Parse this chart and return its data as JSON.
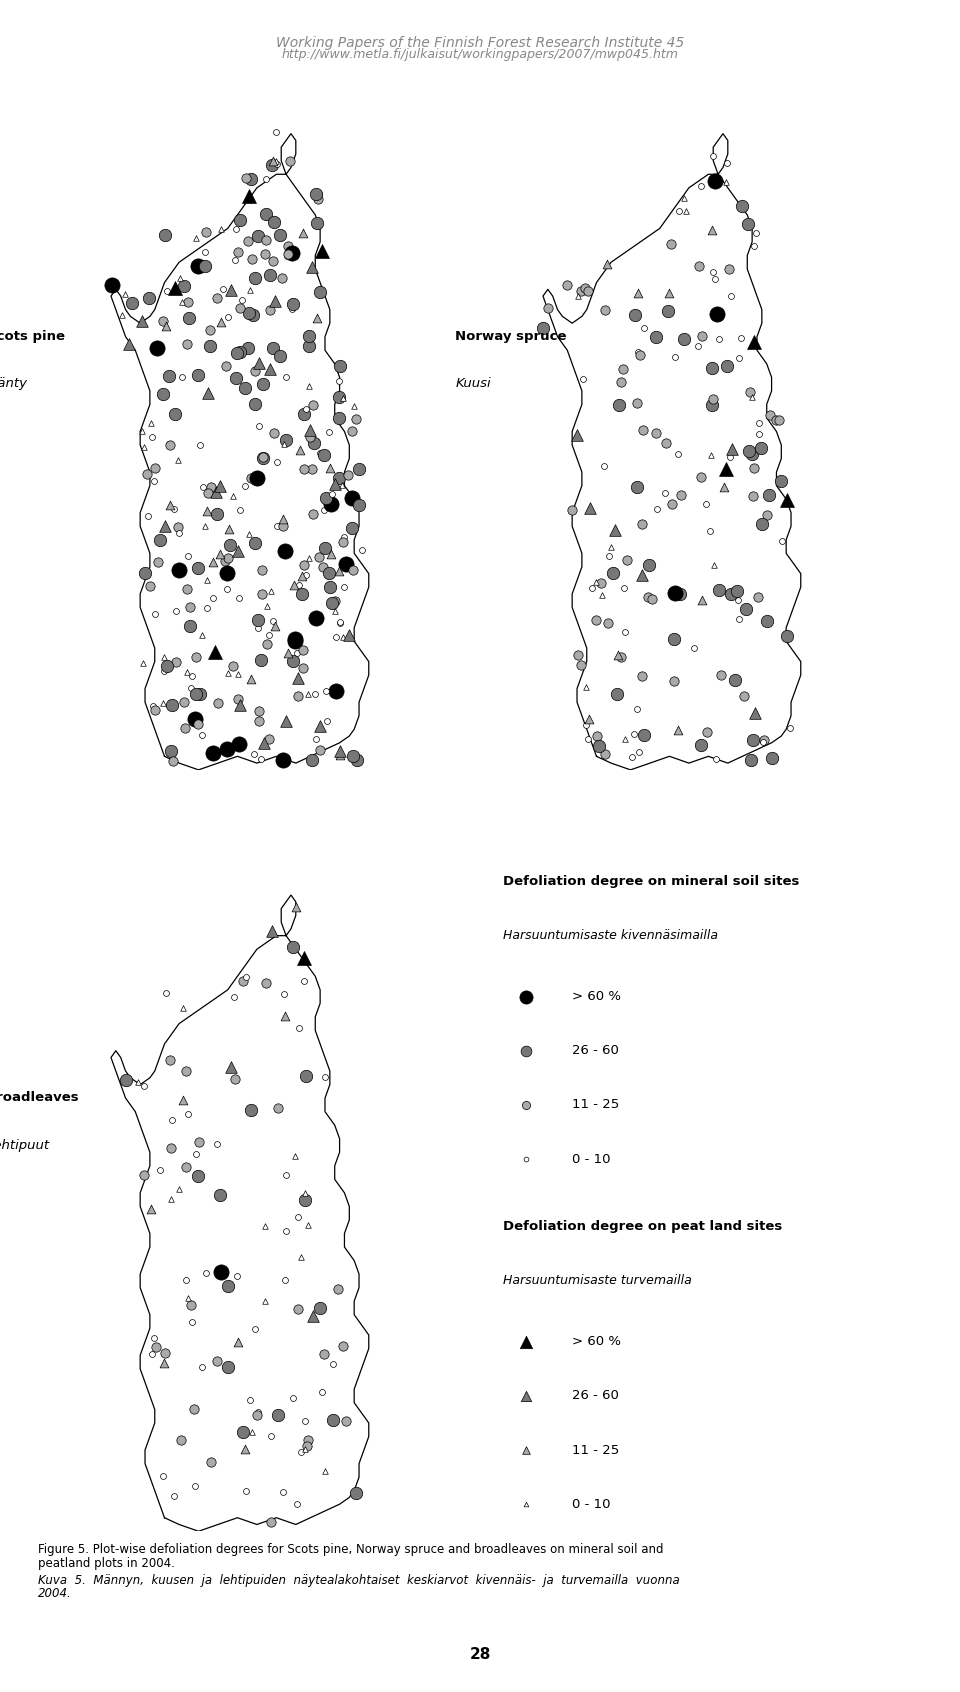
{
  "header_title": "Working Papers of the Finnish Forest Research Institute 45",
  "header_url": "http://www.metla.fi/julkaisut/workingpapers/2007/mwp045.htm",
  "header_color": "#888888",
  "header_line_color": "#4EADB5",
  "figure_caption_line1": "Figure 5. Plot-wise defoliation degrees for Scots pine, Norway spruce and broadleaves on mineral soil and",
  "figure_caption_line2": "peatland plots in 2004.",
  "figure_caption_italic": "Kuva  5.  Männyn,  kuusen  ja  lehtipuiden  näytealakohtaiset  keskiarvot  kivennäis-  ja  turvemailla  vuonna",
  "figure_caption_italic2": "2004.",
  "page_number": "28",
  "legend_mineral_title": "Defoliation degree on mineral soil sites",
  "legend_mineral_subtitle": "Harsuuntumisaste kivennäsimailla",
  "legend_peat_title": "Defoliation degree on peat land sites",
  "legend_peat_subtitle": "Harsuuntumisaste turvemailla",
  "legend_circle_labels": [
    "> 60 %",
    "26 - 60",
    "11 - 25",
    "0 - 10"
  ],
  "legend_triangle_labels": [
    "> 60 %",
    "26 - 60",
    "11 - 25",
    "0 - 10"
  ],
  "map1_label_en": "Scots pine",
  "map1_label_fi": "Mänty",
  "map2_label_en": "Norway spruce",
  "map2_label_fi": "Kuusi",
  "map3_label_en": "Broadleaves",
  "map3_label_fi": "Lehtipuut",
  "background_color": "#ffffff",
  "text_color": "#000000",
  "dot_colors_circle": [
    "#000000",
    "#777777",
    "#aaaaaa",
    "#ffffff"
  ],
  "dot_colors_tri": [
    "#000000",
    "#777777",
    "#aaaaaa",
    "#ffffff"
  ],
  "dot_sizes_circle": [
    120,
    80,
    45,
    18
  ],
  "dot_sizes_tri": [
    100,
    70,
    40,
    16
  ]
}
